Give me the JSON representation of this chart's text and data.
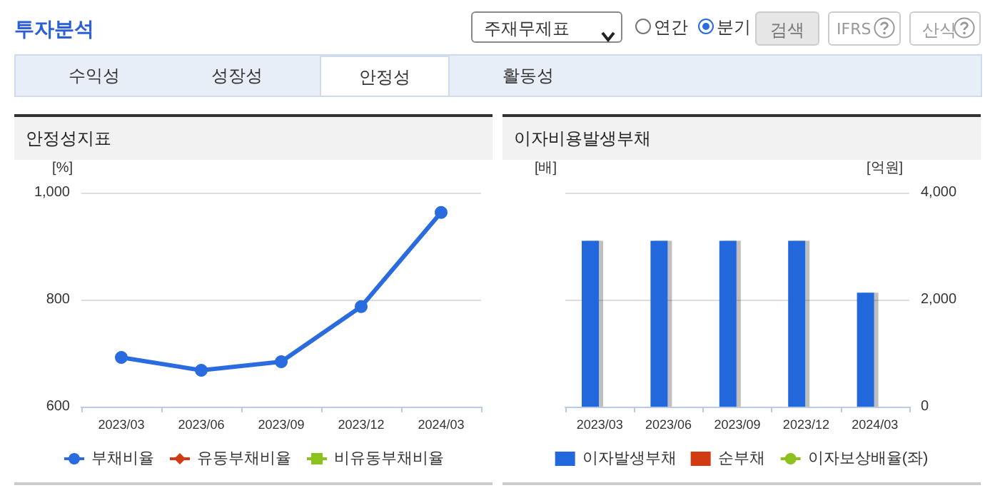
{
  "chart_data": [
    {
      "type": "line",
      "title": "안정성지표",
      "ylabel": "[%]",
      "categories": [
        "2023/03",
        "2023/06",
        "2023/09",
        "2023/12",
        "2024/03"
      ],
      "annotations": [
        "투자분석",
        "주재무제표",
        "연간",
        "분기",
        "검색",
        "IFRS",
        "산식",
        "수익성",
        "성장성",
        "안정성",
        "활동성"
      ],
      "series": [
        {
          "name": "부채비율",
          "color": "#2b6be0",
          "values": [
            692,
            668,
            684,
            787,
            963
          ]
        },
        {
          "name": "유동부채비율",
          "color": "#d23a12",
          "marker": "diamond",
          "values": [
            null,
            null,
            null,
            null,
            null
          ]
        },
        {
          "name": "비유동부채비율",
          "color": "#8cc21e",
          "marker": "square",
          "values": [
            null,
            null,
            null,
            null,
            null
          ]
        }
      ],
      "ylim": [
        600,
        1000
      ],
      "yticks": [
        600,
        800,
        {
          "value": 1000,
          "label": "1,000"
        }
      ],
      "grid": "y",
      "legend": "bottom",
      "marker": "circle",
      "line_style": "solid"
    },
    {
      "type": "bar",
      "title": "이자비용발생부채",
      "ylabel": "[배]",
      "y2label": "[억원]",
      "categories": [
        "2023/03",
        "2023/06",
        "2023/09",
        "2023/12",
        "2024/03"
      ],
      "series": [
        {
          "name": "이자발생부채",
          "color": "#2268dc",
          "axis": "y2",
          "values": [
            3100,
            3100,
            3100,
            3100,
            2130
          ]
        },
        {
          "name": "순부채",
          "color": "#d23a12",
          "axis": "y2",
          "values": [
            null,
            null,
            null,
            null,
            null
          ]
        },
        {
          "name": "이자보상배율(좌)",
          "type": "line",
          "color": "#8cc21e",
          "marker": "circle",
          "values": [
            null,
            null,
            null,
            null,
            null
          ]
        }
      ],
      "y2lim": [
        0,
        4000
      ],
      "y2ticks": [
        0,
        {
          "value": 2000,
          "label": "2,000"
        },
        {
          "value": 4000,
          "label": "4,000"
        }
      ],
      "grid": "y",
      "legend": "bottom"
    }
  ]
}
